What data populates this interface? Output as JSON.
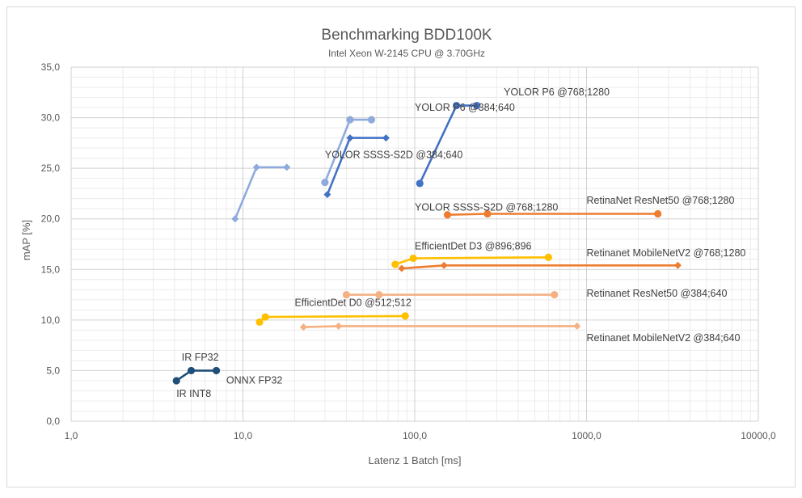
{
  "chart_data": {
    "type": "scatter",
    "title": "Benchmarking BDD100K",
    "subtitle": "Intel Xeon W-2145 CPU @ 3.70GHz",
    "xlabel": "Latenz 1 Batch [ms]",
    "ylabel": "mAP [%]",
    "xscale": "log",
    "xlim": [
      1,
      10000
    ],
    "ylim": [
      0,
      35
    ],
    "x_ticks": [
      "1,0",
      "10,0",
      "100,0",
      "1000,0",
      "10000,0"
    ],
    "y_ticks": [
      "0,0",
      "5,0",
      "10,0",
      "15,0",
      "20,0",
      "25,0",
      "30,0",
      "35,0"
    ],
    "grid": true,
    "legend": "none",
    "series": [
      {
        "name": "YOLOR P6 @768;1280",
        "color": "#4472c4",
        "marker": "circle",
        "x": [
          107,
          175,
          230
        ],
        "y": [
          23.5,
          31.2,
          31.2
        ]
      },
      {
        "name": "YOLOR P6 @384;640",
        "color": "#8faadc",
        "marker": "circle",
        "x": [
          30,
          42,
          56
        ],
        "y": [
          23.6,
          29.8,
          29.8
        ]
      },
      {
        "name": "YOLOR SSSS-S2D @768;1280",
        "color": "#4472c4",
        "marker": "diamond",
        "x": [
          31,
          42,
          68
        ],
        "y": [
          22.4,
          28.0,
          28.0
        ]
      },
      {
        "name": "YOLOR SSSS-S2D @384;640",
        "color": "#8faadc",
        "marker": "diamond",
        "x": [
          9,
          12,
          18
        ],
        "y": [
          20.0,
          25.1,
          25.1
        ]
      },
      {
        "name": "RetinaNet ResNet50 @768;1280",
        "color": "#ed7d31",
        "marker": "circle",
        "x": [
          155,
          265,
          2600
        ],
        "y": [
          20.4,
          20.5,
          20.5
        ]
      },
      {
        "name": "EfficientDet D3 @896;896",
        "color": "#ffc000",
        "marker": "circle",
        "x": [
          77,
          98,
          600
        ],
        "y": [
          15.5,
          16.1,
          16.2
        ]
      },
      {
        "name": "Retinanet MobileNetV2 @768;1280",
        "color": "#ed7d31",
        "marker": "diamond",
        "x": [
          84,
          148,
          3400
        ],
        "y": [
          15.1,
          15.4,
          15.4
        ]
      },
      {
        "name": "Retinanet ResNet50 @384;640",
        "color": "#f4b183",
        "marker": "circle",
        "x": [
          40,
          62,
          650
        ],
        "y": [
          12.5,
          12.5,
          12.5
        ]
      },
      {
        "name": "EfficientDet D0 @512;512",
        "color": "#ffc000",
        "marker": "circle",
        "x": [
          12.5,
          13.5,
          88
        ],
        "y": [
          9.8,
          10.3,
          10.4
        ]
      },
      {
        "name": "Retinanet MobileNetV2 @384;640",
        "color": "#f4b183",
        "marker": "diamond",
        "x": [
          22.5,
          36,
          880
        ],
        "y": [
          9.3,
          9.4,
          9.4
        ]
      },
      {
        "name": "IR INT8 / IR FP32 / ONNX FP32",
        "color": "#1f4e79",
        "marker": "circle",
        "x": [
          4.1,
          5.0,
          7.0
        ],
        "y": [
          4.0,
          5.0,
          5.0
        ]
      }
    ],
    "annotations": [
      {
        "text": "YOLOR P6 @768;1280",
        "x": 330,
        "y": 32.2
      },
      {
        "text": "YOLOR P6 @384;640",
        "x": 100,
        "y": 30.7
      },
      {
        "text": "YOLOR SSSS-S2D @384;640",
        "x": 30,
        "y": 26.0
      },
      {
        "text": "YOLOR SSSS-S2D @768;1280",
        "x": 100,
        "y": 20.8
      },
      {
        "text": "RetinaNet ResNet50 @768;1280",
        "x": 1000,
        "y": 21.5
      },
      {
        "text": "EfficientDet D3 @896;896",
        "x": 100,
        "y": 17.0
      },
      {
        "text": "Retinanet MobileNetV2 @768;1280",
        "x": 1000,
        "y": 16.3
      },
      {
        "text": "Retinanet ResNet50 @384;640",
        "x": 1000,
        "y": 12.3
      },
      {
        "text": "EfficientDet D0 @512;512",
        "x": 20,
        "y": 11.4
      },
      {
        "text": "Retinanet MobileNetV2 @384;640",
        "x": 1000,
        "y": 7.9
      },
      {
        "text": "IR FP32",
        "x": 4.4,
        "y": 6.0
      },
      {
        "text": "IR INT8",
        "x": 4.1,
        "y": 2.4
      },
      {
        "text": "ONNX FP32",
        "x": 8.0,
        "y": 3.7
      }
    ]
  }
}
